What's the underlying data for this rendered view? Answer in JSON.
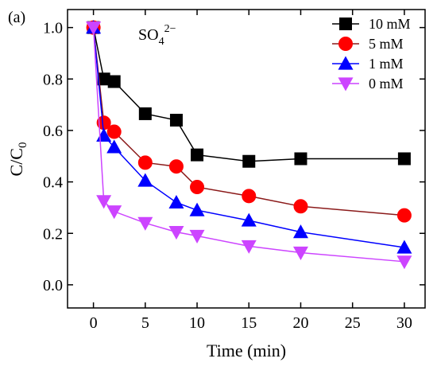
{
  "chart_data": {
    "type": "line",
    "panel_label": "(a)",
    "annotation": {
      "base": "SO",
      "sub": "4",
      "sup": "2−"
    },
    "xlabel": "Time (min)",
    "ylabel": {
      "base": "C/C",
      "sub": "0"
    },
    "xlim": [
      -2.5,
      32
    ],
    "ylim": [
      -0.09,
      1.07
    ],
    "xticks": [
      0,
      5,
      10,
      15,
      20,
      25,
      30
    ],
    "yticks": [
      0.0,
      0.2,
      0.4,
      0.6,
      0.8,
      1.0
    ],
    "grid": false,
    "legend_position": "top-right",
    "x": [
      0,
      1,
      2,
      5,
      8,
      10,
      15,
      20,
      30
    ],
    "series": [
      {
        "name": "10 mM",
        "color": "#000000",
        "marker": "square",
        "values": [
          1.0,
          0.8,
          0.79,
          0.665,
          0.64,
          0.505,
          0.48,
          0.49,
          0.49
        ]
      },
      {
        "name": "5 mM",
        "color": "#ff0000",
        "line_color": "#8b1a1a",
        "marker": "circle",
        "values": [
          1.0,
          0.63,
          0.595,
          0.475,
          0.46,
          0.38,
          0.345,
          0.305,
          0.27
        ]
      },
      {
        "name": "1 mM",
        "color": "#0000ff",
        "marker": "triangle-up",
        "values": [
          1.0,
          0.58,
          0.535,
          0.405,
          0.32,
          0.29,
          0.25,
          0.205,
          0.145
        ]
      },
      {
        "name": "0 mM",
        "color": "#cc44ff",
        "marker": "triangle-down",
        "values": [
          1.0,
          0.325,
          0.285,
          0.24,
          0.205,
          0.19,
          0.15,
          0.125,
          0.09
        ]
      }
    ]
  }
}
